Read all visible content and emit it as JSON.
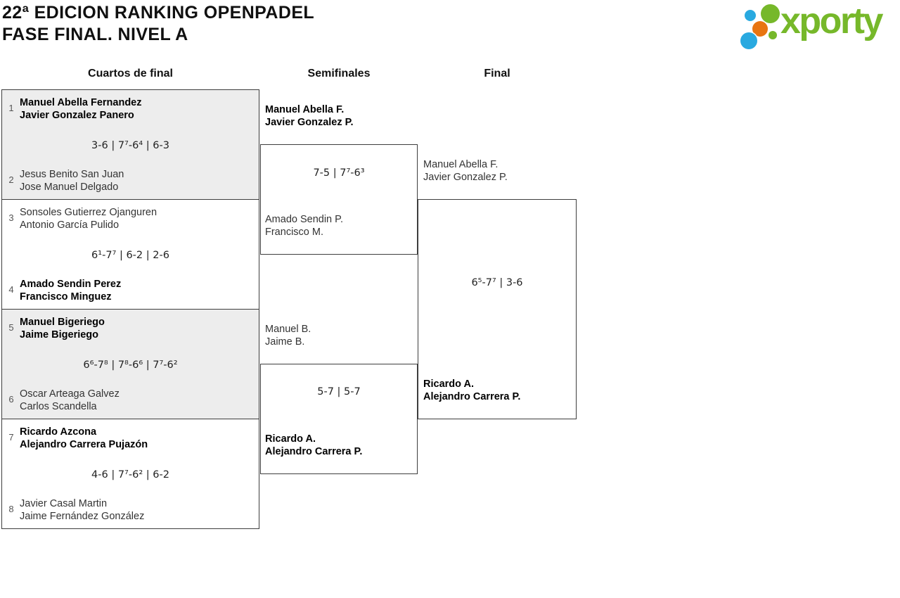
{
  "header": {
    "title_line1": "22ª EDICION RANKING OPENPADEL",
    "title_line2": "FASE FINAL. NIVEL A"
  },
  "logo": {
    "text": "xporty",
    "green": "#76b82a",
    "orange": "#e87511",
    "blue": "#29a9e0"
  },
  "columns": {
    "quarterfinals": "Cuartos de final",
    "semifinals": "Semifinales",
    "final": "Final"
  },
  "colors": {
    "match_shaded_background": "#ededed",
    "border": "#3d3d3d"
  },
  "quarterfinals": [
    {
      "seed_top": "1",
      "team_top": [
        "Manuel Abella Fernandez",
        "Javier Gonzalez Panero"
      ],
      "team_top_winner": true,
      "score": "3-6 | 7⁷-6⁴ | 6-3",
      "seed_bottom": "2",
      "team_bottom": [
        "Jesus Benito San Juan",
        "Jose Manuel Delgado"
      ],
      "team_bottom_winner": false
    },
    {
      "seed_top": "3",
      "team_top": [
        "Sonsoles Gutierrez Ojanguren",
        "Antonio García Pulido"
      ],
      "team_top_winner": false,
      "score": "6¹-7⁷ | 6-2 | 2-6",
      "seed_bottom": "4",
      "team_bottom": [
        "Amado Sendin Perez",
        "Francisco Minguez"
      ],
      "team_bottom_winner": true
    },
    {
      "seed_top": "5",
      "team_top": [
        "Manuel Bigeriego",
        "Jaime Bigeriego"
      ],
      "team_top_winner": true,
      "score": "6⁶-7⁸ | 7⁸-6⁶ | 7⁷-6²",
      "seed_bottom": "6",
      "team_bottom": [
        "Oscar Arteaga Galvez",
        "Carlos Scandella"
      ],
      "team_bottom_winner": false
    },
    {
      "seed_top": "7",
      "team_top": [
        "Ricardo Azcona",
        "Alejandro Carrera Pujazón"
      ],
      "team_top_winner": true,
      "score": "4-6 | 7⁷-6² | 6-2",
      "seed_bottom": "8",
      "team_bottom": [
        "Javier Casal Martin",
        "Jaime Fernández González"
      ],
      "team_bottom_winner": false
    }
  ],
  "semifinals": [
    {
      "team_top": [
        "Manuel Abella F.",
        "Javier Gonzalez P."
      ],
      "team_top_winner": true,
      "score": "7-5 | 7⁷-6³",
      "team_bottom": [
        "Amado Sendin P.",
        "Francisco M."
      ],
      "team_bottom_winner": false
    },
    {
      "team_top": [
        "Manuel B.",
        "Jaime B."
      ],
      "team_top_winner": false,
      "score": "5-7 | 5-7",
      "team_bottom": [
        "Ricardo A.",
        "Alejandro Carrera P."
      ],
      "team_bottom_winner": true
    }
  ],
  "final": {
    "team_top": [
      "Manuel Abella F.",
      "Javier Gonzalez P."
    ],
    "team_top_winner": false,
    "score": "6⁵-7⁷ | 3-6",
    "team_bottom": [
      "Ricardo A.",
      "Alejandro Carrera P."
    ],
    "team_bottom_winner": true
  }
}
